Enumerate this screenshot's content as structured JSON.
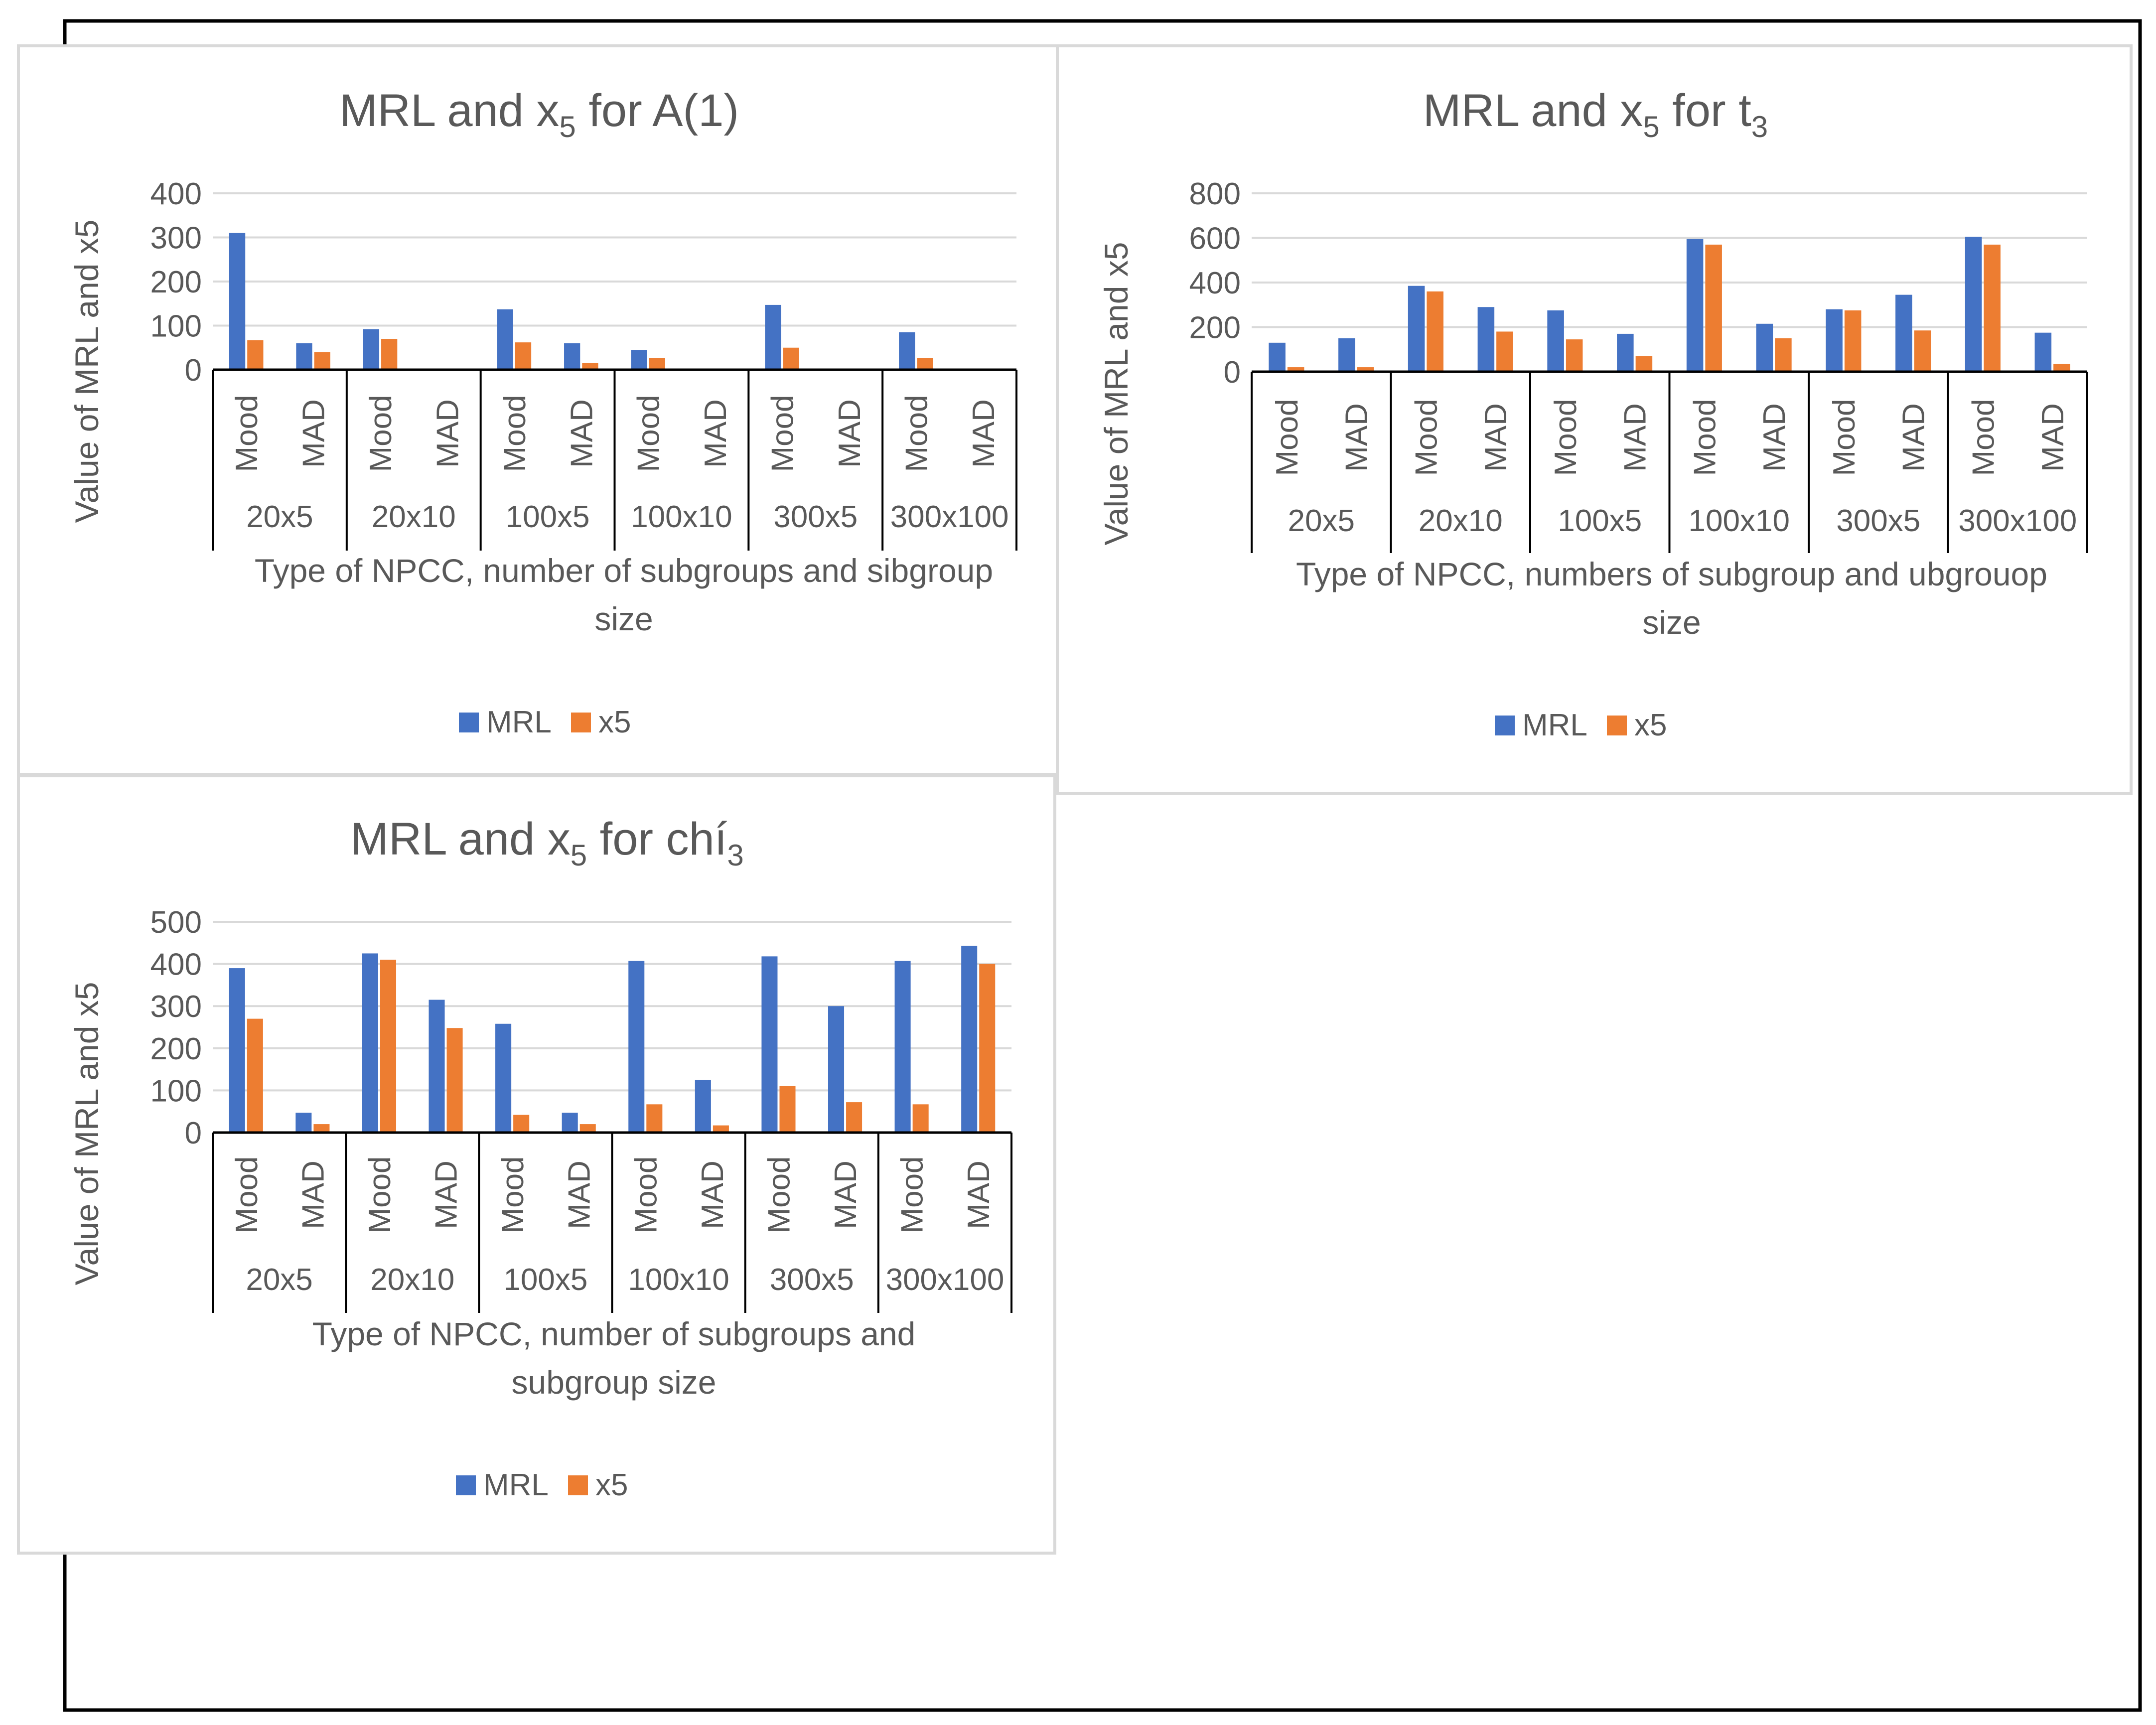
{
  "legend": {
    "items": [
      "MRL",
      "x5"
    ]
  },
  "colors": {
    "MRL": "#4472C4",
    "x5": "#ED7D31",
    "axis": "#000000",
    "grid": "#D9D9D9",
    "text": "#595959",
    "panel_border": "#D9D9D9",
    "outer_border": "#000000"
  },
  "chart_data": [
    {
      "type": "bar",
      "title": {
        "main": "MRL and x",
        "sub": "5",
        "tail": " for A(1)",
        "tail_sub": ""
      },
      "ylabel": "Value of MRL and x5",
      "xlabel_lines": [
        "Type of NPCC, number of subgroups and sibgroup",
        "size"
      ],
      "ylim": [
        0,
        400
      ],
      "yticks": [
        "0",
        "100",
        "200",
        "300",
        "400"
      ],
      "groups": [
        "20x5",
        "20x10",
        "100x5",
        "100x10",
        "300x5",
        "300x100"
      ],
      "categories": [
        "Mood",
        "MAD",
        "Mood",
        "MAD",
        "Mood",
        "MAD",
        "Mood",
        "MAD",
        "Mood",
        "MAD",
        "Mood",
        "MAD"
      ],
      "series": [
        {
          "name": "MRL",
          "values": [
            310,
            60,
            92,
            0,
            137,
            60,
            45,
            0,
            147,
            0,
            85,
            0
          ]
        },
        {
          "name": "x5",
          "values": [
            67,
            40,
            70,
            0,
            62,
            15,
            27,
            0,
            50,
            0,
            27,
            0
          ]
        }
      ],
      "legend": "bottom"
    },
    {
      "type": "bar",
      "title": {
        "main": "MRL and x",
        "sub": "5",
        "tail": " for t",
        "tail_sub": "3"
      },
      "ylabel": "Value of MRL and x5",
      "xlabel_lines": [
        "Type of NPCC, numbers of subgroup and ubgrouop",
        "size"
      ],
      "ylim": [
        0,
        800
      ],
      "yticks": [
        "0",
        "200",
        "400",
        "600",
        "800"
      ],
      "groups": [
        "20x5",
        "20x10",
        "100x5",
        "100x10",
        "300x5",
        "300x100"
      ],
      "categories": [
        "Mood",
        "MAD",
        "Mood",
        "MAD",
        "Mood",
        "MAD",
        "Mood",
        "MAD",
        "Mood",
        "MAD",
        "Mood",
        "MAD"
      ],
      "series": [
        {
          "name": "MRL",
          "values": [
            130,
            150,
            385,
            290,
            275,
            170,
            595,
            215,
            280,
            345,
            605,
            175
          ]
        },
        {
          "name": "x5",
          "values": [
            20,
            20,
            360,
            180,
            145,
            70,
            570,
            150,
            275,
            185,
            570,
            35
          ]
        }
      ],
      "legend": "bottom"
    },
    {
      "type": "bar",
      "title": {
        "main": "MRL and x",
        "sub": "5",
        "tail": " for chí",
        "tail_sub": "3"
      },
      "ylabel": "Value of MRL and x5",
      "xlabel_lines": [
        "Type of NPCC, number of subgroups and",
        "subgroup size"
      ],
      "ylim": [
        0,
        500
      ],
      "yticks": [
        "0",
        "100",
        "200",
        "300",
        "400",
        "500"
      ],
      "groups": [
        "20x5",
        "20x10",
        "100x5",
        "100x10",
        "300x5",
        "300x100"
      ],
      "categories": [
        "Mood",
        "MAD",
        "Mood",
        "MAD",
        "Mood",
        "MAD",
        "Mood",
        "MAD",
        "Mood",
        "MAD",
        "Mood",
        "MAD"
      ],
      "series": [
        {
          "name": "MRL",
          "values": [
            390,
            47,
            425,
            315,
            258,
            47,
            407,
            125,
            418,
            300,
            407,
            443
          ]
        },
        {
          "name": "x5",
          "values": [
            270,
            20,
            410,
            248,
            42,
            20,
            67,
            17,
            110,
            72,
            67,
            400
          ]
        }
      ],
      "legend": "bottom"
    }
  ]
}
